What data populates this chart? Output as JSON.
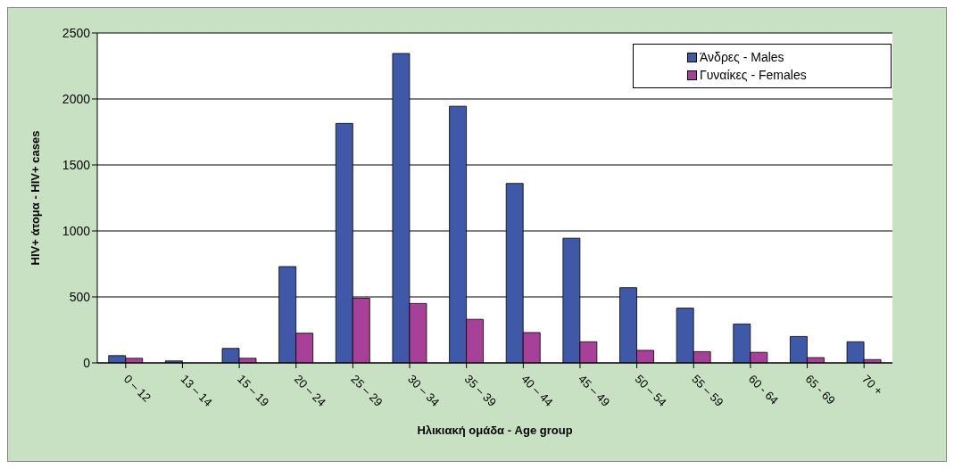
{
  "chart_data": {
    "type": "bar",
    "xlabel": "Ηλικιακή ομάδα - Age group",
    "ylabel": "HIV+ άτομα - HIV+ cases",
    "categories": [
      "0 – 12",
      "13 – 14",
      "15 – 19",
      "20 – 24",
      "25 – 29",
      "30 – 34",
      "35 – 39",
      "40 – 44",
      "45 – 49",
      "50 – 54",
      "55 – 59",
      "60 - 64",
      "65 - 69",
      "70 +"
    ],
    "series": [
      {
        "name": "Άνδρες - Males",
        "color": "#4058a8",
        "values": [
          55,
          15,
          110,
          730,
          1815,
          2345,
          1945,
          1360,
          945,
          570,
          415,
          295,
          200,
          160
        ]
      },
      {
        "name": "Γυναίκες - Females",
        "color": "#a8409a",
        "values": [
          35,
          null,
          35,
          225,
          490,
          450,
          330,
          230,
          160,
          95,
          85,
          80,
          40,
          25
        ]
      }
    ],
    "ylim": [
      0,
      2500
    ],
    "yticks": [
      0,
      500,
      1000,
      1500,
      2000,
      2500
    ],
    "grid": "y",
    "legend": "top right"
  }
}
